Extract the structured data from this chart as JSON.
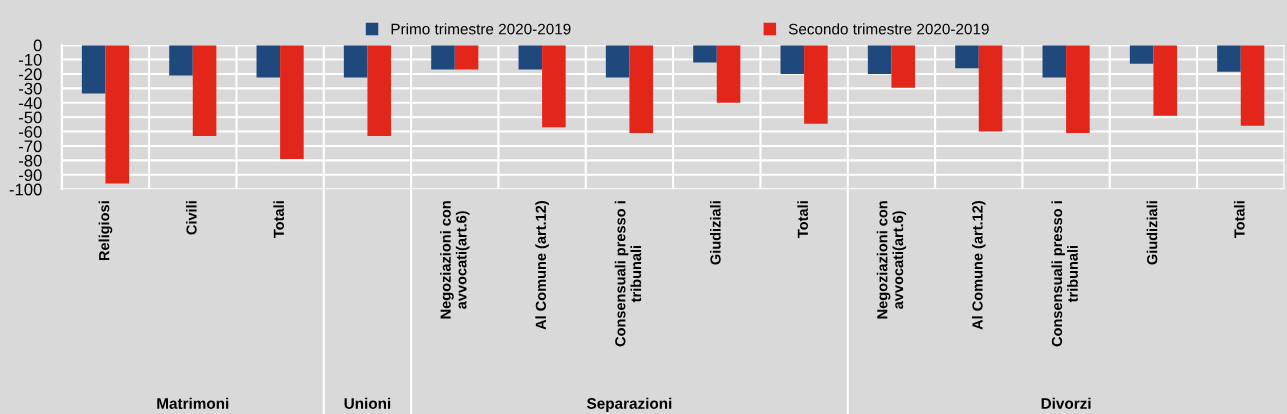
{
  "chart_data": {
    "type": "bar",
    "categories": [
      "Religiosi",
      "Civili",
      "Totali",
      null,
      "Negoziazioni con\navvocati(art.6)",
      "Al Comune (art.12)",
      "Consensuali presso i\ntribunali",
      "Giudiziali",
      "Totali",
      "Negoziazioni con\navvocati(art.6)",
      "Al Comune (art.12)",
      "Consensuali presso i\ntribunali",
      "Giudiziali",
      "Totali"
    ],
    "series": [
      {
        "name": "Primo trimestre 2020-2019",
        "color": "#1f497d",
        "values": [
          -33.5,
          -21,
          -22.5,
          -22.5,
          -17,
          -17,
          -22.5,
          -12,
          -20,
          -20,
          -16,
          -22.5,
          -13,
          -18.5
        ]
      },
      {
        "name": "Secondo trimestre 2020-2019",
        "color": "#e3261a",
        "values": [
          -96,
          -63,
          -79,
          -63,
          -17,
          -57,
          -61,
          -40,
          -54.5,
          -29.5,
          -60,
          -61,
          -49,
          -56
        ]
      }
    ],
    "ylim": [
      -100,
      0
    ],
    "yticks": [
      0,
      -10,
      -20,
      -30,
      -40,
      -50,
      -60,
      -70,
      -80,
      -90,
      -100
    ],
    "grid": true,
    "legend": "top",
    "annotations": [
      "Matrimoni",
      "Unioni",
      "Separazioni",
      "Divorzi"
    ]
  }
}
